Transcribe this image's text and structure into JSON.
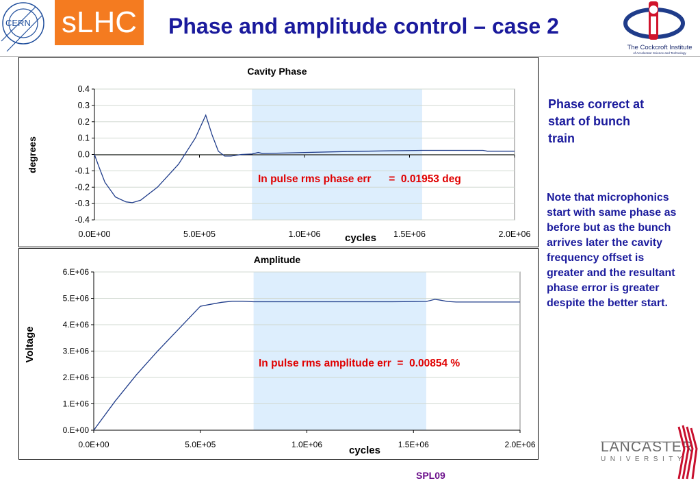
{
  "header": {
    "title": "Phase and amplitude control – case 2",
    "logo_cern_text": "CERN",
    "logo_slhc_text": "sLHC",
    "logo_cockcroft_text": "The Cockcroft Institute",
    "logo_cockcroft_subtext": "of Accelerator Science and Technology"
  },
  "notes": {
    "phase_correct": "Phase correct at start of bunch train",
    "microphonics": "Note that microphonics start with same phase as before but as the bunch arrives later the cavity frequency offset is greater and the resultant phase error is greater despite the better start."
  },
  "footer": {
    "label": "SPL09",
    "lancaster_text": "LANCASTER",
    "university_text": "UNIVERSITY"
  },
  "colors": {
    "title": "#1a1a9c",
    "slhc_bg": "#f47b20",
    "highlight": "#ddeefd",
    "annotation": "#e00000",
    "line": "#1f3c8a"
  },
  "chart_data": [
    {
      "type": "line",
      "title": "Cavity  Phase",
      "xlabel": "cycles",
      "ylabel": "degrees",
      "xlim": [
        0,
        2000000
      ],
      "ylim": [
        -0.4,
        0.4
      ],
      "x_ticks": [
        "0.0E+00",
        "5.0E+05",
        "1.0E+06",
        "1.5E+06",
        "2.0E+06"
      ],
      "y_ticks": [
        "0.4",
        "0.3",
        "0.2",
        "0.1",
        "0.0",
        "-0.1",
        "-0.2",
        "-0.3",
        "-0.4"
      ],
      "grid": "horizontal",
      "highlight_x": [
        750000,
        1560000
      ],
      "annotation": "In pulse rms phase err      =  0.01953 deg",
      "series": [
        {
          "x": [
            0,
            20000,
            50000,
            100000,
            150000,
            180000,
            220000,
            300000,
            400000,
            480000,
            530000,
            560000,
            590000,
            620000,
            650000,
            700000,
            750000,
            780000,
            800000,
            1000000,
            1200000,
            1400000,
            1560000,
            1700000,
            1850000,
            1870000,
            2000000
          ],
          "y": [
            0.0,
            -0.07,
            -0.17,
            -0.26,
            -0.29,
            -0.295,
            -0.28,
            -0.2,
            -0.06,
            0.1,
            0.24,
            0.12,
            0.02,
            -0.01,
            -0.01,
            0.0,
            0.003,
            0.012,
            0.006,
            0.012,
            0.018,
            0.022,
            0.025,
            0.025,
            0.025,
            0.02,
            0.02
          ]
        }
      ]
    },
    {
      "type": "line",
      "title": "Amplitude",
      "xlabel": "cycles",
      "ylabel": "Voltage",
      "xlim": [
        0,
        2000000
      ],
      "ylim": [
        0,
        6000000
      ],
      "x_ticks": [
        "0.0E+00",
        "5.0E+05",
        "1.0E+06",
        "1.5E+06",
        "2.0E+06"
      ],
      "y_ticks": [
        "6.E+06",
        "5.E+06",
        "4.E+06",
        "3.E+06",
        "2.E+06",
        "1.E+06",
        "0.E+00"
      ],
      "grid": "horizontal",
      "highlight_x": [
        750000,
        1560000
      ],
      "annotation": "In pulse rms amplitude err  =  0.00854 %",
      "series": [
        {
          "x": [
            0,
            100000,
            200000,
            300000,
            400000,
            500000,
            540000,
            600000,
            650000,
            700000,
            750000,
            1000000,
            1200000,
            1400000,
            1560000,
            1600000,
            1620000,
            1660000,
            1700000,
            2000000
          ],
          "y": [
            0,
            1100000,
            2100000,
            3000000,
            3850000,
            4700000,
            4760000,
            4850000,
            4890000,
            4890000,
            4870000,
            4870000,
            4870000,
            4870000,
            4880000,
            4960000,
            4940000,
            4880000,
            4860000,
            4860000
          ]
        }
      ]
    }
  ]
}
